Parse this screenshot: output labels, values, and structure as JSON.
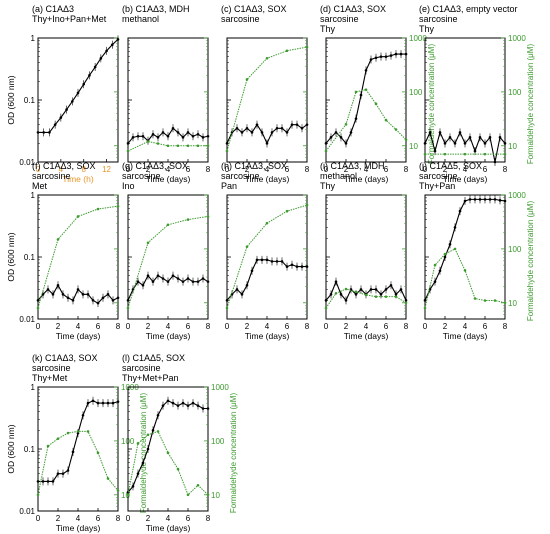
{
  "figure": {
    "left_ylabel": "OD (600 nm)",
    "right_ylabel": "Formaldehyde concentration (μM)",
    "xlabel_days": "Time (days)",
    "xlabel_hours": "Time (h)",
    "colors": {
      "od": "#000000",
      "formaldehyde": "#3c9a2e",
      "hours_axis": "#e8962a"
    }
  },
  "chart_data": [
    {
      "type": "line",
      "panel": "a",
      "title": [
        "(a) C1AΔ3",
        "Thy+Ino+Pan+Met"
      ],
      "xlabel": "Time (h)",
      "x_unit": "hours",
      "xlim": [
        0,
        14
      ],
      "xticks": [
        0,
        4,
        8,
        12
      ],
      "ylabel": "OD (600 nm)",
      "yscale": "log",
      "ylim": [
        0.01,
        1
      ],
      "yticks": [
        "0.01",
        "0.1",
        "1"
      ],
      "series": [
        {
          "kind": "od",
          "x": [
            0,
            1,
            2,
            3,
            4,
            5,
            6,
            7,
            8,
            9,
            10,
            11,
            12,
            13,
            14
          ],
          "y": [
            0.03,
            0.03,
            0.03,
            0.04,
            0.052,
            0.07,
            0.095,
            0.13,
            0.18,
            0.25,
            0.34,
            0.47,
            0.62,
            0.78,
            0.95
          ]
        }
      ]
    },
    {
      "type": "line",
      "panel": "b",
      "title": [
        "(b) C1AΔ3, MDH",
        "methanol"
      ],
      "xlabel": "Time (days)",
      "xlim": [
        0,
        8
      ],
      "xticks": [
        0,
        2,
        4,
        6,
        8
      ],
      "ylim": [
        0.01,
        1
      ],
      "yscale": "log",
      "series": [
        {
          "kind": "od",
          "x": [
            0,
            0.5,
            1,
            1.5,
            2,
            2.5,
            3,
            3.5,
            4,
            4.5,
            5,
            5.5,
            6,
            6.5,
            7,
            7.5,
            8
          ],
          "y": [
            0.02,
            0.025,
            0.026,
            0.026,
            0.022,
            0.028,
            0.025,
            0.03,
            0.026,
            0.035,
            0.03,
            0.025,
            0.03,
            0.026,
            0.028,
            0.025,
            0.026
          ]
        },
        {
          "kind": "formaldehyde",
          "x": [
            0,
            2,
            3,
            4,
            5,
            6,
            7,
            8
          ],
          "y": [
            8,
            12,
            11,
            10,
            10,
            10,
            10,
            10
          ]
        }
      ]
    },
    {
      "type": "line",
      "panel": "c",
      "title": [
        "(c) C1AΔ3, SOX",
        "sarcosine"
      ],
      "xlabel": "Time (days)",
      "xlim": [
        0,
        8
      ],
      "xticks": [
        0,
        2,
        4,
        6,
        8
      ],
      "ylim": [
        0.01,
        1
      ],
      "yscale": "log",
      "series": [
        {
          "kind": "od",
          "x": [
            0,
            0.5,
            1,
            1.5,
            2,
            2.5,
            3,
            3.5,
            4,
            4.5,
            5,
            5.5,
            6,
            6.5,
            7,
            7.5,
            8
          ],
          "y": [
            0.02,
            0.03,
            0.035,
            0.03,
            0.035,
            0.03,
            0.04,
            0.03,
            0.02,
            0.03,
            0.035,
            0.035,
            0.03,
            0.04,
            0.04,
            0.035,
            0.04
          ]
        },
        {
          "kind": "formaldehyde",
          "x": [
            0,
            2,
            4,
            6,
            8
          ],
          "y": [
            8,
            170,
            420,
            580,
            680
          ]
        }
      ]
    },
    {
      "type": "line",
      "panel": "d",
      "title": [
        "(d) C1AΔ3, SOX",
        "sarcosine",
        "Thy"
      ],
      "xlabel": "Time (days)",
      "xlim": [
        0,
        8
      ],
      "xticks": [
        0,
        2,
        4,
        6,
        8
      ],
      "ylim": [
        0.01,
        1
      ],
      "yscale": "log",
      "right_axis": {
        "label": "Formaldehyde concentration (μM)",
        "ylim": [
          5,
          1000
        ],
        "yticks": [
          "10",
          "100",
          "1000"
        ]
      },
      "series": [
        {
          "kind": "od",
          "x": [
            0,
            0.5,
            1,
            1.5,
            2,
            2.5,
            3,
            3.5,
            4,
            4.5,
            5,
            5.5,
            6,
            6.5,
            7,
            7.5,
            8
          ],
          "y": [
            0.02,
            0.025,
            0.03,
            0.025,
            0.02,
            0.03,
            0.05,
            0.12,
            0.3,
            0.45,
            0.48,
            0.5,
            0.5,
            0.52,
            0.55,
            0.55,
            0.55
          ]
        },
        {
          "kind": "formaldehyde",
          "x": [
            0,
            2,
            3,
            4,
            5,
            6,
            7,
            8
          ],
          "y": [
            8,
            25,
            100,
            110,
            60,
            30,
            20,
            13
          ]
        }
      ]
    },
    {
      "type": "line",
      "panel": "e",
      "title": [
        "(e) C1AΔ3, empty vector",
        "sarcosine",
        "Thy"
      ],
      "xlabel": "Time (days)",
      "xlim": [
        0,
        8
      ],
      "xticks": [
        0,
        2,
        4,
        6,
        8
      ],
      "ylim": [
        0.01,
        1
      ],
      "yscale": "log",
      "right_axis": {
        "label": "Formaldehyde concentration (μM)",
        "ylim": [
          5,
          1000
        ],
        "yticks": [
          "10",
          "100",
          "1000"
        ]
      },
      "series": [
        {
          "kind": "od",
          "x": [
            0,
            0.5,
            1,
            1.5,
            2,
            2.5,
            3,
            3.5,
            4,
            4.5,
            5,
            5.5,
            6,
            6.5,
            7,
            7.5,
            8
          ],
          "y": [
            0.02,
            0.03,
            0.015,
            0.03,
            0.02,
            0.025,
            0.02,
            0.03,
            0.02,
            0.025,
            0.015,
            0.025,
            0.02,
            0.025,
            0.01,
            0.025,
            0.02
          ]
        },
        {
          "kind": "formaldehyde",
          "x": [
            0,
            2,
            4,
            6,
            8
          ],
          "y": [
            7,
            7,
            7,
            7,
            7
          ]
        }
      ]
    },
    {
      "type": "line",
      "panel": "f",
      "title": [
        "(f) C1AΔ3, SOX",
        "sarcosine",
        "Met"
      ],
      "xlabel": "Time (days)",
      "xlim": [
        0,
        8
      ],
      "xticks": [
        0,
        2,
        4,
        6,
        8
      ],
      "ylim": [
        0.01,
        1
      ],
      "yscale": "log",
      "series": [
        {
          "kind": "od",
          "x": [
            0,
            0.5,
            1,
            1.5,
            2,
            2.5,
            3,
            3.5,
            4,
            4.5,
            5,
            5.5,
            6,
            6.5,
            7,
            7.5,
            8
          ],
          "y": [
            0.02,
            0.025,
            0.03,
            0.025,
            0.035,
            0.025,
            0.022,
            0.02,
            0.03,
            0.025,
            0.025,
            0.02,
            0.018,
            0.022,
            0.025,
            0.02,
            0.022
          ]
        },
        {
          "kind": "formaldehyde",
          "x": [
            0,
            2,
            4,
            6,
            8
          ],
          "y": [
            8,
            150,
            400,
            550,
            620
          ]
        }
      ]
    },
    {
      "type": "line",
      "panel": "g",
      "title": [
        "(g) C1AΔ3, SOX",
        "sarcosine",
        "Ino"
      ],
      "xlabel": "Time (days)",
      "xlim": [
        0,
        8
      ],
      "xticks": [
        0,
        2,
        4,
        6,
        8
      ],
      "ylim": [
        0.01,
        1
      ],
      "yscale": "log",
      "series": [
        {
          "kind": "od",
          "x": [
            0,
            0.5,
            1,
            1.5,
            2,
            2.5,
            3,
            3.5,
            4,
            4.5,
            5,
            5.5,
            6,
            6.5,
            7,
            7.5,
            8
          ],
          "y": [
            0.02,
            0.03,
            0.04,
            0.035,
            0.05,
            0.04,
            0.05,
            0.045,
            0.04,
            0.05,
            0.045,
            0.04,
            0.045,
            0.04,
            0.04,
            0.045,
            0.04
          ]
        },
        {
          "kind": "formaldehyde",
          "x": [
            0,
            2,
            4,
            6,
            8
          ],
          "y": [
            8,
            130,
            280,
            350,
            400
          ]
        }
      ]
    },
    {
      "type": "line",
      "panel": "h",
      "title": [
        "(h) C1AΔ3, SOX",
        "sarcosine",
        "Pan"
      ],
      "xlabel": "Time (days)",
      "xlim": [
        0,
        8
      ],
      "xticks": [
        0,
        2,
        4,
        6,
        8
      ],
      "ylim": [
        0.01,
        1
      ],
      "yscale": "log",
      "series": [
        {
          "kind": "od",
          "x": [
            0,
            0.5,
            1,
            1.5,
            2,
            2.5,
            3,
            3.5,
            4,
            4.5,
            5,
            5.5,
            6,
            6.5,
            7,
            7.5,
            8
          ],
          "y": [
            0.02,
            0.025,
            0.03,
            0.025,
            0.035,
            0.06,
            0.09,
            0.09,
            0.09,
            0.085,
            0.085,
            0.085,
            0.07,
            0.075,
            0.07,
            0.07,
            0.07
          ]
        },
        {
          "kind": "formaldehyde",
          "x": [
            0,
            2,
            4,
            6,
            8
          ],
          "y": [
            8,
            110,
            300,
            500,
            650
          ]
        }
      ]
    },
    {
      "type": "line",
      "panel": "i",
      "title": [
        "(i) C1AΔ3, MDH",
        "methanol",
        "Thy"
      ],
      "xlabel": "Time (days)",
      "xlim": [
        0,
        8
      ],
      "xticks": [
        0,
        2,
        4,
        6,
        8
      ],
      "ylim": [
        0.01,
        1
      ],
      "yscale": "log",
      "series": [
        {
          "kind": "od",
          "x": [
            0,
            0.5,
            1,
            1.5,
            2,
            2.5,
            3,
            3.5,
            4,
            4.5,
            5,
            5.5,
            6,
            6.5,
            7,
            7.5,
            8
          ],
          "y": [
            0.02,
            0.025,
            0.04,
            0.025,
            0.02,
            0.03,
            0.025,
            0.03,
            0.025,
            0.03,
            0.03,
            0.025,
            0.03,
            0.035,
            0.025,
            0.03,
            0.02
          ]
        },
        {
          "kind": "formaldehyde",
          "x": [
            0,
            1,
            2,
            3,
            4,
            5,
            6,
            7,
            8
          ],
          "y": [
            8,
            15,
            18,
            16,
            14,
            13,
            13,
            13,
            10
          ]
        }
      ]
    },
    {
      "type": "line",
      "panel": "j",
      "title": [
        "(j) C1AΔ5, SOX",
        "sarcosine",
        "Thy+Pan"
      ],
      "xlabel": "Time (days)",
      "xlim": [
        0,
        8
      ],
      "xticks": [
        0,
        2,
        4,
        6,
        8
      ],
      "ylim": [
        0.01,
        1
      ],
      "yscale": "log",
      "right_axis": {
        "label": "Formaldehyde concentration (μM)",
        "ylim": [
          5,
          1000
        ],
        "yticks": [
          "10",
          "100",
          "1000"
        ]
      },
      "series": [
        {
          "kind": "od",
          "x": [
            0,
            0.5,
            1,
            1.5,
            2,
            2.5,
            3,
            3.5,
            4,
            4.5,
            5,
            5.5,
            6,
            6.5,
            7,
            7.5,
            8
          ],
          "y": [
            0.02,
            0.03,
            0.04,
            0.06,
            0.1,
            0.16,
            0.3,
            0.55,
            0.8,
            0.85,
            0.85,
            0.85,
            0.85,
            0.85,
            0.85,
            0.82,
            0.8
          ]
        },
        {
          "kind": "formaldehyde",
          "x": [
            0,
            1,
            2,
            3,
            4,
            5,
            6,
            7,
            8
          ],
          "y": [
            8,
            50,
            80,
            100,
            40,
            12,
            11,
            11,
            10
          ]
        }
      ]
    },
    {
      "type": "line",
      "panel": "k",
      "title": [
        "(k) C1AΔ3, SOX",
        "sarcosine",
        "Thy+Met"
      ],
      "xlabel": "Time (days)",
      "xlim": [
        0,
        8
      ],
      "xticks": [
        0,
        2,
        4,
        6,
        8
      ],
      "ylim": [
        0.01,
        1
      ],
      "yscale": "log",
      "right_axis": {
        "label": "Formaldehyde concentration (μM)",
        "ylim": [
          5,
          1000
        ],
        "yticks": [
          "10",
          "100",
          "1000"
        ]
      },
      "series": [
        {
          "kind": "od",
          "x": [
            0,
            0.5,
            1,
            1.5,
            2,
            2.5,
            3,
            3.5,
            4,
            4.5,
            5,
            5.5,
            6,
            6.5,
            7,
            7.5,
            8
          ],
          "y": [
            0.03,
            0.03,
            0.03,
            0.03,
            0.04,
            0.04,
            0.045,
            0.09,
            0.18,
            0.35,
            0.55,
            0.6,
            0.55,
            0.55,
            0.55,
            0.55,
            0.58
          ]
        },
        {
          "kind": "formaldehyde",
          "x": [
            0,
            1,
            2,
            3,
            4,
            5,
            6,
            7,
            8
          ],
          "y": [
            10,
            80,
            110,
            140,
            150,
            150,
            60,
            20,
            12
          ]
        }
      ]
    },
    {
      "type": "line",
      "panel": "l",
      "title": [
        "(l) C1AΔ5, SOX",
        "sarcosine",
        "Thy+Met+Pan"
      ],
      "xlabel": "Time (days)",
      "xlim": [
        0,
        8
      ],
      "xticks": [
        0,
        2,
        4,
        6,
        8
      ],
      "ylim": [
        0.01,
        1
      ],
      "yscale": "log",
      "right_axis": {
        "label": "Formaldehyde concentration (μM)",
        "ylim": [
          5,
          1000
        ],
        "yticks": [
          "10",
          "100",
          "1000"
        ]
      },
      "series": [
        {
          "kind": "od",
          "x": [
            0,
            0.5,
            1,
            1.5,
            2,
            2.5,
            3,
            3.5,
            4,
            4.5,
            5,
            5.5,
            6,
            6.5,
            7,
            7.5,
            8
          ],
          "y": [
            0.02,
            0.025,
            0.04,
            0.06,
            0.1,
            0.2,
            0.35,
            0.5,
            0.6,
            0.55,
            0.5,
            0.55,
            0.5,
            0.55,
            0.5,
            0.45,
            0.45
          ]
        },
        {
          "kind": "formaldehyde",
          "x": [
            0,
            1,
            2,
            3,
            4,
            5,
            6,
            7,
            8
          ],
          "y": [
            10,
            90,
            130,
            150,
            60,
            30,
            10,
            15,
            10
          ]
        }
      ]
    }
  ]
}
